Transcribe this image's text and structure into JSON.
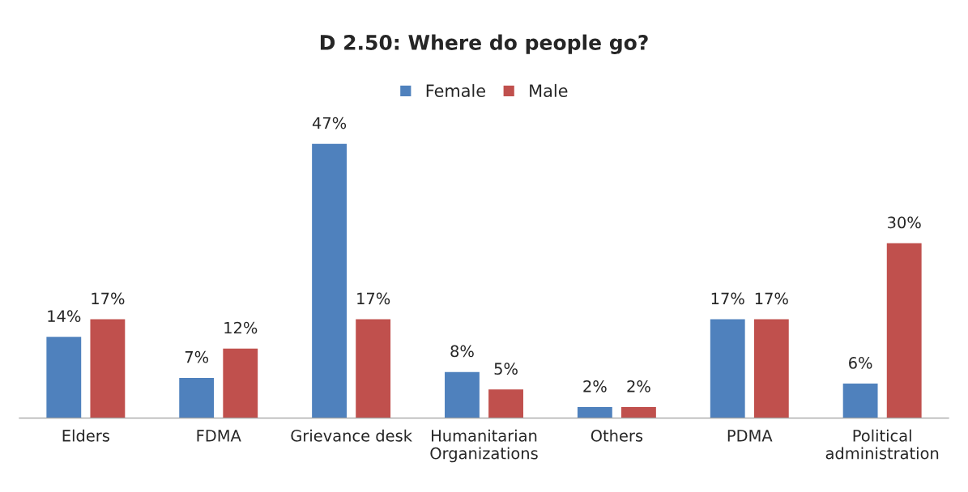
{
  "chart_data": {
    "type": "bar",
    "title": "D 2.50: Where do people go?",
    "categories": [
      "Elders",
      "FDMA",
      "Grievance desk",
      "Humanitarian Organizations",
      "Others",
      "PDMA",
      "Political administration"
    ],
    "series": [
      {
        "name": "Female",
        "color": "#4f81bd",
        "values": [
          14,
          7,
          47,
          8,
          2,
          17,
          6
        ],
        "value_labels": [
          "14%",
          "7%",
          "47%",
          "8%",
          "2%",
          "17%",
          "6%"
        ]
      },
      {
        "name": "Male",
        "color": "#c0504d",
        "values": [
          17,
          12,
          17,
          5,
          2,
          17,
          30
        ],
        "value_labels": [
          "17%",
          "12%",
          "17%",
          "5%",
          "2%",
          "17%",
          "30%"
        ]
      }
    ],
    "legend": "top",
    "grid": false
  }
}
